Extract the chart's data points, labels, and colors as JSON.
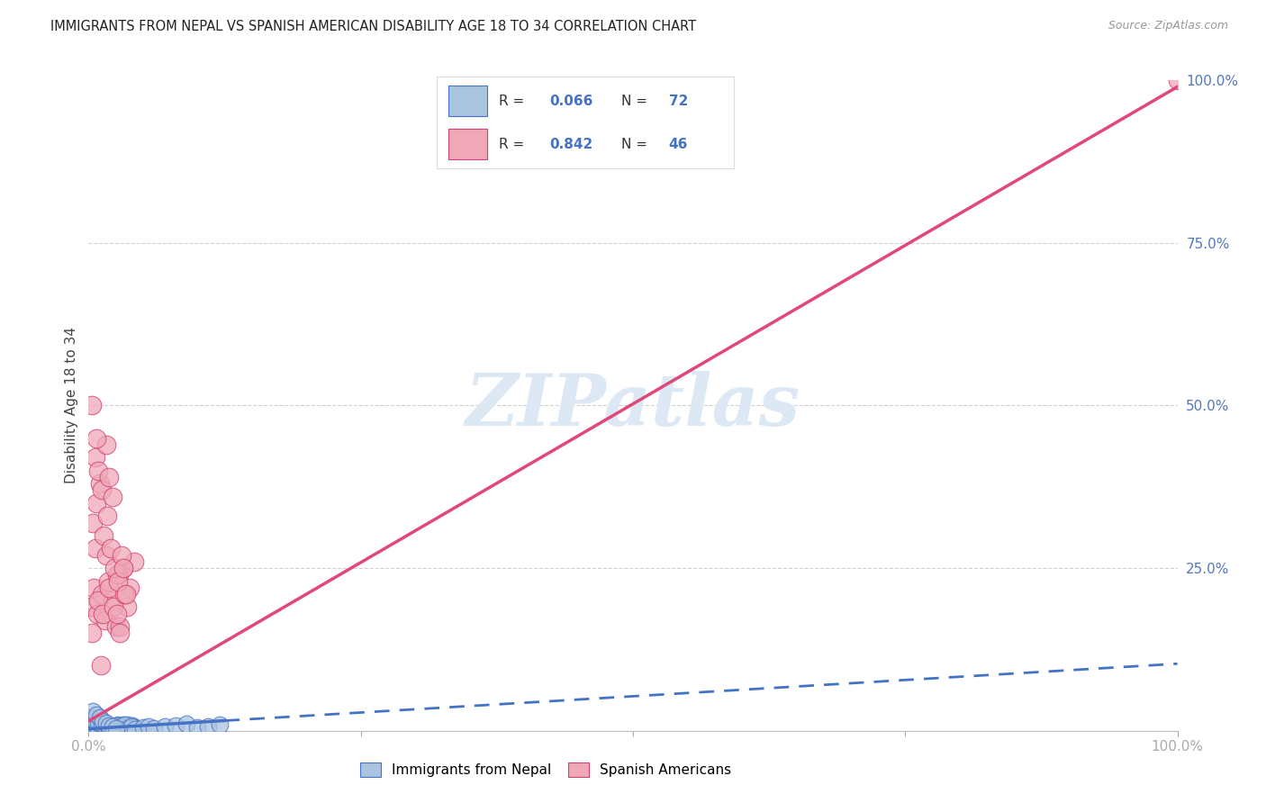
{
  "title": "IMMIGRANTS FROM NEPAL VS SPANISH AMERICAN DISABILITY AGE 18 TO 34 CORRELATION CHART",
  "source": "Source: ZipAtlas.com",
  "ylabel": "Disability Age 18 to 34",
  "xlim": [
    0,
    100
  ],
  "ylim": [
    0,
    100
  ],
  "nepal_R": 0.066,
  "nepal_N": 72,
  "spanish_R": 0.842,
  "spanish_N": 46,
  "nepal_color_fill": "#aac4e0",
  "nepal_color_edge": "#4472c4",
  "spanish_color_fill": "#f0a8b8",
  "spanish_color_edge": "#d04070",
  "trend_nepal_color": "#4472c4",
  "trend_spanish_color": "#e04878",
  "grid_color": "#cccccc",
  "watermark_color": "#dde8f5",
  "nepal_seed": 42,
  "spanish_seed": 123,
  "nepal_points_x": [
    0.3,
    0.5,
    0.8,
    1.0,
    1.2,
    1.5,
    1.8,
    2.0,
    2.2,
    2.5,
    2.8,
    3.0,
    3.2,
    3.5,
    3.8,
    0.2,
    0.4,
    0.7,
    1.1,
    1.4,
    1.7,
    2.1,
    2.4,
    2.7,
    3.1,
    3.4,
    3.7,
    4.0,
    0.6,
    0.9,
    1.3,
    1.6,
    1.9,
    2.3,
    2.6,
    2.9,
    3.3,
    3.6,
    3.9,
    4.2,
    0.1,
    0.3,
    0.6,
    0.9,
    1.2,
    1.5,
    1.8,
    2.1,
    2.4,
    2.7,
    3.0,
    3.3,
    3.6,
    3.9,
    4.3,
    5.0,
    5.5,
    6.0,
    7.0,
    8.0,
    9.0,
    10.0,
    11.0,
    12.0,
    0.4,
    0.7,
    1.0,
    1.3,
    1.6,
    1.9,
    2.2,
    2.5
  ],
  "nepal_points_y": [
    0.5,
    0.3,
    0.8,
    0.4,
    0.6,
    0.2,
    0.7,
    0.3,
    0.5,
    0.8,
    0.4,
    0.6,
    0.9,
    0.3,
    0.7,
    1.2,
    0.4,
    0.6,
    0.8,
    0.5,
    0.3,
    0.7,
    0.4,
    0.9,
    0.5,
    0.3,
    0.6,
    0.8,
    1.5,
    0.4,
    0.6,
    0.3,
    0.7,
    0.5,
    0.8,
    0.4,
    0.6,
    0.9,
    0.3,
    0.5,
    2.0,
    1.8,
    1.5,
    1.2,
    1.0,
    0.8,
    0.6,
    0.4,
    0.3,
    0.5,
    0.7,
    0.9,
    0.4,
    0.6,
    0.3,
    0.5,
    0.7,
    0.4,
    0.6,
    0.8,
    1.0,
    0.5,
    0.7,
    0.9,
    3.0,
    2.5,
    2.0,
    1.5,
    1.2,
    0.8,
    0.6,
    0.4
  ],
  "spanish_points_x": [
    0.2,
    0.5,
    0.8,
    1.2,
    1.5,
    1.8,
    2.2,
    2.5,
    2.8,
    3.2,
    3.5,
    3.8,
    4.2,
    0.3,
    0.6,
    0.9,
    1.3,
    1.6,
    1.9,
    2.3,
    2.6,
    2.9,
    3.3,
    0.4,
    0.7,
    1.0,
    1.4,
    1.7,
    2.0,
    2.4,
    2.7,
    3.0,
    3.4,
    0.6,
    0.9,
    1.2,
    1.6,
    1.9,
    2.2,
    2.6,
    2.9,
    3.2,
    0.3,
    0.7,
    1.1,
    100.0
  ],
  "spanish_points_y": [
    19.0,
    22.0,
    18.0,
    21.0,
    17.0,
    23.0,
    20.0,
    16.0,
    24.0,
    25.0,
    19.0,
    22.0,
    26.0,
    15.0,
    28.0,
    20.0,
    18.0,
    27.0,
    22.0,
    19.0,
    24.0,
    16.0,
    21.0,
    32.0,
    35.0,
    38.0,
    30.0,
    33.0,
    28.0,
    25.0,
    23.0,
    27.0,
    21.0,
    42.0,
    40.0,
    37.0,
    44.0,
    39.0,
    36.0,
    18.0,
    15.0,
    25.0,
    50.0,
    45.0,
    10.0,
    100.0
  ]
}
